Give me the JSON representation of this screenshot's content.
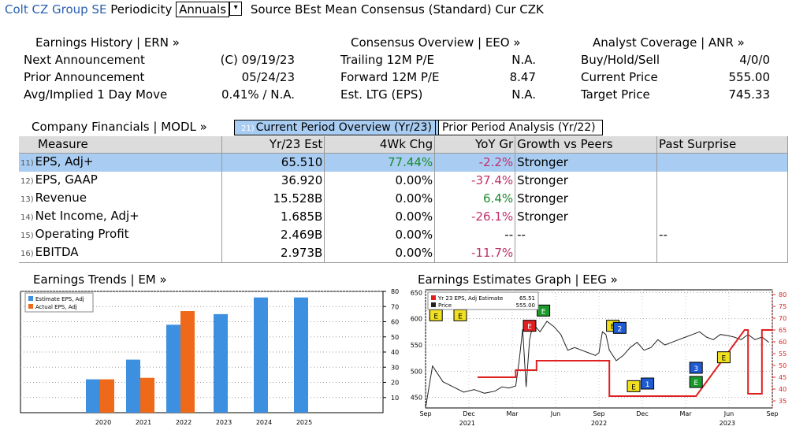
{
  "header": {
    "company": "Colt CZ Group SE",
    "periodicity_label": "Periodicity",
    "periodicity_value": "Annuals",
    "source": "Source BEst Mean Consensus (Standard) Cur CZK"
  },
  "earnings_history": {
    "title": "Earnings History | ERN »",
    "rows": [
      {
        "label": "Next Announcement",
        "value": "(C)  09/19/23"
      },
      {
        "label": "Prior Announcement",
        "value": "05/24/23"
      },
      {
        "label": "Avg/Implied 1 Day Move",
        "value": "0.41% / N.A."
      }
    ]
  },
  "consensus": {
    "title": "Consensus Overview | EEO »",
    "rows": [
      {
        "label": "Trailing 12M P/E",
        "value": "N.A."
      },
      {
        "label": "Forward 12M P/E",
        "value": "8.47"
      },
      {
        "label": "Est. LTG (EPS)",
        "value": "N.A."
      }
    ]
  },
  "analyst": {
    "title": "Analyst Coverage | ANR »",
    "rows": [
      {
        "label": "Buy/Hold/Sell",
        "value": "4/0/0"
      },
      {
        "label": "Current Price",
        "value": "555.00"
      },
      {
        "label": "Target Price",
        "value": "745.33"
      }
    ]
  },
  "financials": {
    "title": "Company Financials | MODL »",
    "tabs": [
      {
        "num": "21)",
        "label": "Current Period Overview (Yr/23)"
      },
      {
        "label": "Prior Period Analysis (Yr/22)"
      }
    ],
    "columns": [
      "Measure",
      "Yr/23 Est",
      "4Wk Chg",
      "YoY Gr",
      "Growth vs Peers",
      "Past Surprise"
    ],
    "rows": [
      {
        "num": "11)",
        "measure": "EPS, Adj+",
        "est": "65.510",
        "chg": "77.44%",
        "yoy": "-2.2%",
        "peers": "Stronger",
        "surprise": ""
      },
      {
        "num": "12)",
        "measure": "EPS, GAAP",
        "est": "36.920",
        "chg": "0.00%",
        "yoy": "-37.4%",
        "peers": "Stronger",
        "surprise": ""
      },
      {
        "num": "13)",
        "measure": "Revenue",
        "est": "15.528B",
        "chg": "0.00%",
        "yoy": "6.4%",
        "peers": "Stronger",
        "surprise": ""
      },
      {
        "num": "14)",
        "measure": "Net Income, Adj+",
        "est": "1.685B",
        "chg": "0.00%",
        "yoy": "-26.1%",
        "peers": "Stronger",
        "surprise": ""
      },
      {
        "num": "15)",
        "measure": "Operating Profit",
        "est": "2.469B",
        "chg": "0.00%",
        "yoy": "--",
        "peers": "--",
        "surprise": "--"
      },
      {
        "num": "16)",
        "measure": "EBITDA",
        "est": "2.973B",
        "chg": "0.00%",
        "yoy": "-11.7%",
        "peers": "",
        "surprise": ""
      }
    ]
  },
  "trends": {
    "title": "Earnings Trends | EM »"
  },
  "estimates_graph": {
    "title": "Earnings Estimates Graph | EEG »"
  },
  "colors": {
    "estimate": "#3d8fe0",
    "actual": "#ee6a1a",
    "line_red": "#e02020",
    "selected_row": "#a9cdf2"
  },
  "chart_data": [
    {
      "type": "bar",
      "categories": [
        "2020",
        "2021",
        "2022",
        "2023",
        "2024",
        "2025"
      ],
      "series": [
        {
          "name": "Estimate EPS, Adj",
          "values": [
            22,
            35,
            58,
            65,
            76,
            76
          ]
        },
        {
          "name": "Actual EPS, Adj",
          "values": [
            22,
            23,
            67,
            null,
            null,
            null
          ]
        }
      ],
      "ylim": [
        0,
        80
      ],
      "yticks": [
        "10",
        "20",
        "30",
        "40",
        "50",
        "60",
        "70",
        "80"
      ],
      "legend": "top-left"
    },
    {
      "type": "line",
      "legend_entries": [
        {
          "name": "Yr 23 EPS, Adj Estimate",
          "value": "65.51"
        },
        {
          "name": "Price",
          "value": "555.00"
        }
      ],
      "x_ticks": [
        "Sep",
        "Dec",
        "Mar",
        "Jun",
        "Sep",
        "Dec",
        "Mar",
        "Jun",
        "Sep"
      ],
      "x_years": [
        "2021",
        "2022",
        "2023"
      ],
      "left_ticks": [
        "450",
        "500",
        "550",
        "600",
        "650"
      ],
      "left_range": [
        430,
        655
      ],
      "right_ticks": [
        "35",
        "40",
        "45",
        "50",
        "55",
        "60",
        "65",
        "70",
        "75",
        "80"
      ],
      "right_range": [
        32,
        82
      ],
      "price": [
        [
          0,
          430
        ],
        [
          1,
          470
        ],
        [
          2,
          510
        ],
        [
          3,
          500
        ],
        [
          5,
          480
        ],
        [
          8,
          470
        ],
        [
          11,
          460
        ],
        [
          14,
          465
        ],
        [
          17,
          458
        ],
        [
          20,
          462
        ],
        [
          22,
          470
        ],
        [
          24,
          468
        ],
        [
          26,
          472
        ],
        [
          27,
          520
        ],
        [
          28,
          580
        ],
        [
          29,
          470
        ],
        [
          30,
          560
        ],
        [
          31,
          590
        ],
        [
          33,
          575
        ],
        [
          35,
          595
        ],
        [
          37,
          585
        ],
        [
          39,
          570
        ],
        [
          41,
          540
        ],
        [
          43,
          545
        ],
        [
          45,
          540
        ],
        [
          47,
          535
        ],
        [
          49,
          530
        ],
        [
          50,
          535
        ],
        [
          51,
          575
        ],
        [
          52,
          570
        ],
        [
          53,
          540
        ],
        [
          55,
          520
        ],
        [
          57,
          530
        ],
        [
          59,
          545
        ],
        [
          61,
          555
        ],
        [
          63,
          540
        ],
        [
          65,
          545
        ],
        [
          67,
          560
        ],
        [
          69,
          550
        ],
        [
          71,
          555
        ],
        [
          73,
          560
        ],
        [
          75,
          565
        ],
        [
          77,
          570
        ],
        [
          79,
          575
        ],
        [
          81,
          565
        ],
        [
          83,
          560
        ],
        [
          85,
          570
        ],
        [
          87,
          568
        ],
        [
          89,
          565
        ],
        [
          91,
          560
        ],
        [
          93,
          570
        ],
        [
          95,
          560
        ],
        [
          97,
          565
        ],
        [
          99,
          555
        ]
      ],
      "estimate": [
        [
          15,
          45
        ],
        [
          26,
          45
        ],
        [
          26,
          48
        ],
        [
          32,
          48
        ],
        [
          32,
          52
        ],
        [
          53,
          52
        ],
        [
          53,
          37
        ],
        [
          78,
          37
        ],
        [
          92,
          65
        ],
        [
          93,
          65
        ],
        [
          93,
          38
        ],
        [
          97,
          38
        ],
        [
          97,
          65
        ],
        [
          100,
          65
        ]
      ]
    }
  ]
}
